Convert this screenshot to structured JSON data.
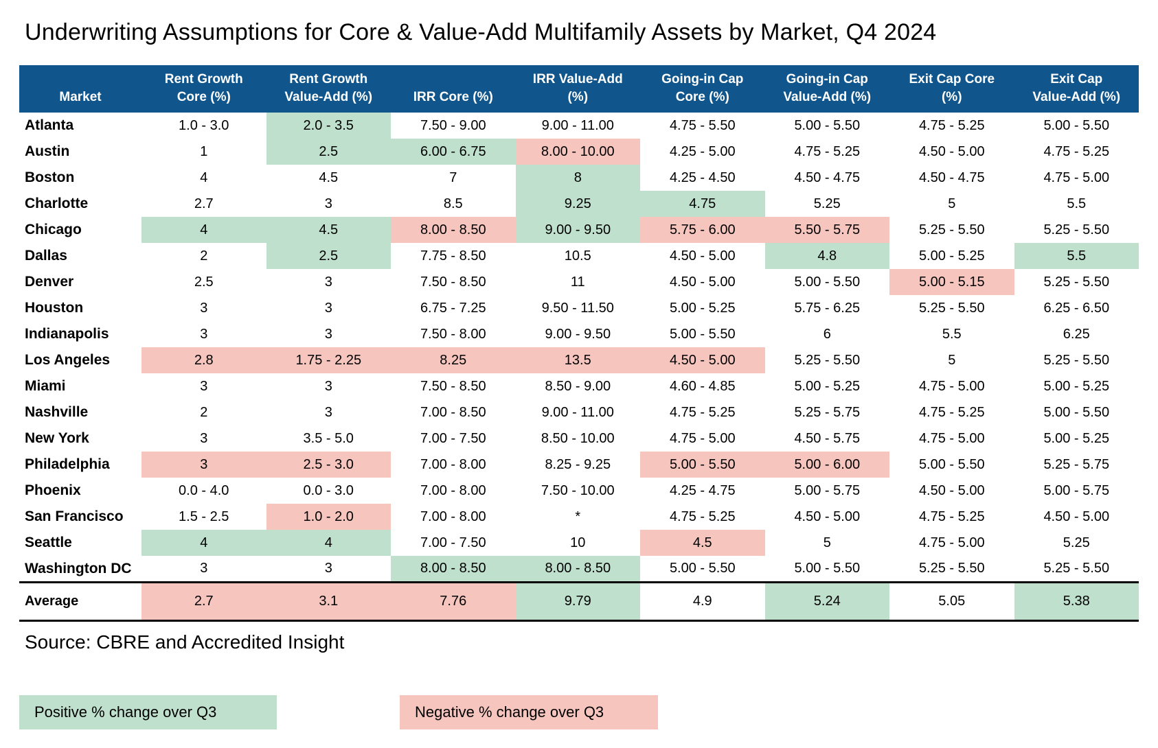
{
  "title": "Underwriting Assumptions for Core & Value-Add Multifamily Assets by Market, Q4 2024",
  "source": "Source: CBRE and Accredited Insight",
  "legend": {
    "positive_label": "Positive % change over Q3",
    "negative_label": "Negative % change over Q3"
  },
  "colors": {
    "header_bg": "#10568C",
    "positive_bg": "#BEE0CD",
    "negative_bg": "#F6C5BE",
    "header_text": "#FFFFFF",
    "body_text": "#000000"
  },
  "chart_data": {
    "type": "table",
    "columns": [
      "Market",
      "Rent Growth Core (%)",
      "Rent Growth Value-Add (%)",
      "IRR Core (%)",
      "IRR Value-Add (%)",
      "Going-in Cap Core (%)",
      "Going-in Cap Value-Add (%)",
      "Exit Cap Core (%)",
      "Exit Cap Value-Add (%)"
    ],
    "column_header_lines": [
      [
        "",
        "Market"
      ],
      [
        "Rent Growth",
        "Core (%)"
      ],
      [
        "Rent Growth",
        "Value-Add (%)"
      ],
      [
        "",
        "IRR Core (%)"
      ],
      [
        "IRR Value-Add",
        "(%)"
      ],
      [
        "Going-in Cap",
        "Core (%)"
      ],
      [
        "Going-in Cap",
        "Value-Add (%)"
      ],
      [
        "Exit Cap Core",
        "(%)"
      ],
      [
        "Exit Cap",
        "Value-Add (%)"
      ]
    ],
    "highlight_codes": {
      "pos": "Positive % change over Q3",
      "neg": "Negative % change over Q3",
      "": "no change"
    },
    "rows": [
      {
        "market": "Atlanta",
        "values": [
          "1.0 - 3.0",
          "2.0 - 3.5",
          "7.50 - 9.00",
          "9.00 - 11.00",
          "4.75 - 5.50",
          "5.00 - 5.50",
          "4.75 - 5.25",
          "5.00 - 5.50"
        ],
        "highlights": [
          "",
          "pos",
          "",
          "",
          "",
          "",
          "",
          ""
        ]
      },
      {
        "market": "Austin",
        "values": [
          "1",
          "2.5",
          "6.00 - 6.75",
          "8.00 - 10.00",
          "4.25 - 5.00",
          "4.75 - 5.25",
          "4.50 - 5.00",
          "4.75 - 5.25"
        ],
        "highlights": [
          "",
          "pos",
          "pos",
          "neg",
          "",
          "",
          "",
          ""
        ]
      },
      {
        "market": "Boston",
        "values": [
          "4",
          "4.5",
          "7",
          "8",
          "4.25 - 4.50",
          "4.50 - 4.75",
          "4.50 - 4.75",
          "4.75 - 5.00"
        ],
        "highlights": [
          "",
          "",
          "",
          "pos",
          "",
          "",
          "",
          ""
        ]
      },
      {
        "market": "Charlotte",
        "values": [
          "2.7",
          "3",
          "8.5",
          "9.25",
          "4.75",
          "5.25",
          "5",
          "5.5"
        ],
        "highlights": [
          "",
          "",
          "",
          "pos",
          "pos",
          "",
          "",
          ""
        ]
      },
      {
        "market": "Chicago",
        "values": [
          "4",
          "4.5",
          "8.00 - 8.50",
          "9.00 - 9.50",
          "5.75 - 6.00",
          "5.50 - 5.75",
          "5.25 - 5.50",
          "5.25 - 5.50"
        ],
        "highlights": [
          "pos",
          "pos",
          "neg",
          "pos",
          "neg",
          "neg",
          "",
          ""
        ]
      },
      {
        "market": "Dallas",
        "values": [
          "2",
          "2.5",
          "7.75 - 8.50",
          "10.5",
          "4.50 - 5.00",
          "4.8",
          "5.00 - 5.25",
          "5.5"
        ],
        "highlights": [
          "",
          "pos",
          "",
          "",
          "",
          "pos",
          "",
          "pos"
        ]
      },
      {
        "market": "Denver",
        "values": [
          "2.5",
          "3",
          "7.50 - 8.50",
          "11",
          "4.50 - 5.00",
          "5.00 - 5.50",
          "5.00 - 5.15",
          "5.25 - 5.50"
        ],
        "highlights": [
          "",
          "",
          "",
          "",
          "",
          "",
          "neg",
          ""
        ]
      },
      {
        "market": "Houston",
        "values": [
          "3",
          "3",
          "6.75 - 7.25",
          "9.50 - 11.50",
          "5.00 - 5.25",
          "5.75 - 6.25",
          "5.25 - 5.50",
          "6.25 - 6.50"
        ],
        "highlights": [
          "",
          "",
          "",
          "",
          "",
          "",
          "",
          ""
        ]
      },
      {
        "market": "Indianapolis",
        "values": [
          "3",
          "3",
          "7.50 - 8.00",
          "9.00 - 9.50",
          "5.00 - 5.50",
          "6",
          "5.5",
          "6.25"
        ],
        "highlights": [
          "",
          "",
          "",
          "",
          "",
          "",
          "",
          ""
        ]
      },
      {
        "market": "Los Angeles",
        "values": [
          "2.8",
          "1.75 - 2.25",
          "8.25",
          "13.5",
          "4.50 - 5.00",
          "5.25 - 5.50",
          "5",
          "5.25 - 5.50"
        ],
        "highlights": [
          "neg",
          "neg",
          "neg",
          "neg",
          "neg",
          "",
          "",
          ""
        ]
      },
      {
        "market": "Miami",
        "values": [
          "3",
          "3",
          "7.50 - 8.50",
          "8.50 - 9.00",
          "4.60 - 4.85",
          "5.00 - 5.25",
          "4.75 - 5.00",
          "5.00 - 5.25"
        ],
        "highlights": [
          "",
          "",
          "",
          "",
          "",
          "",
          "",
          ""
        ]
      },
      {
        "market": "Nashville",
        "values": [
          "2",
          "3",
          "7.00 - 8.50",
          "9.00 - 11.00",
          "4.75 - 5.25",
          "5.25 - 5.75",
          "4.75 - 5.25",
          "5.00 - 5.50"
        ],
        "highlights": [
          "",
          "",
          "",
          "",
          "",
          "",
          "",
          ""
        ]
      },
      {
        "market": "New York",
        "values": [
          "3",
          "3.5 - 5.0",
          "7.00 - 7.50",
          "8.50 - 10.00",
          "4.75 - 5.00",
          "4.50 - 5.75",
          "4.75 - 5.00",
          "5.00 - 5.25"
        ],
        "highlights": [
          "",
          "",
          "",
          "",
          "",
          "",
          "",
          ""
        ]
      },
      {
        "market": "Philadelphia",
        "values": [
          "3",
          "2.5 - 3.0",
          "7.00 - 8.00",
          "8.25 - 9.25",
          "5.00 - 5.50",
          "5.00 - 6.00",
          "5.00 - 5.50",
          "5.25 - 5.75"
        ],
        "highlights": [
          "neg",
          "neg",
          "",
          "",
          "neg",
          "neg",
          "",
          ""
        ]
      },
      {
        "market": "Phoenix",
        "values": [
          "0.0 - 4.0",
          "0.0 - 3.0",
          "7.00 - 8.00",
          "7.50 - 10.00",
          "4.25 - 4.75",
          "5.00 - 5.75",
          "4.50 - 5.00",
          "5.00 - 5.75"
        ],
        "highlights": [
          "",
          "",
          "",
          "",
          "",
          "",
          "",
          ""
        ]
      },
      {
        "market": "San Francisco",
        "values": [
          "1.5 - 2.5",
          "1.0 - 2.0",
          "7.00 - 8.00",
          "*",
          "4.75 - 5.25",
          "4.50 - 5.00",
          "4.75 - 5.25",
          "4.50 - 5.00"
        ],
        "highlights": [
          "",
          "neg",
          "",
          "",
          "",
          "",
          "",
          ""
        ]
      },
      {
        "market": "Seattle",
        "values": [
          "4",
          "4",
          "7.00 - 7.50",
          "10",
          "4.5",
          "5",
          "4.75 - 5.00",
          "5.25"
        ],
        "highlights": [
          "pos",
          "pos",
          "",
          "",
          "neg",
          "",
          "",
          ""
        ]
      },
      {
        "market": "Washington DC",
        "values": [
          "3",
          "3",
          "8.00 - 8.50",
          "8.00 - 8.50",
          "5.00 - 5.50",
          "5.00 - 5.50",
          "5.25 - 5.50",
          "5.25 - 5.50"
        ],
        "highlights": [
          "",
          "",
          "pos",
          "pos",
          "",
          "",
          "",
          ""
        ]
      }
    ],
    "average_row": {
      "market": "Average",
      "values": [
        "2.7",
        "3.1",
        "7.76",
        "9.79",
        "4.9",
        "5.24",
        "5.05",
        "5.38"
      ],
      "highlights": [
        "neg",
        "neg",
        "neg",
        "pos",
        "",
        "pos",
        "",
        "pos"
      ]
    }
  }
}
